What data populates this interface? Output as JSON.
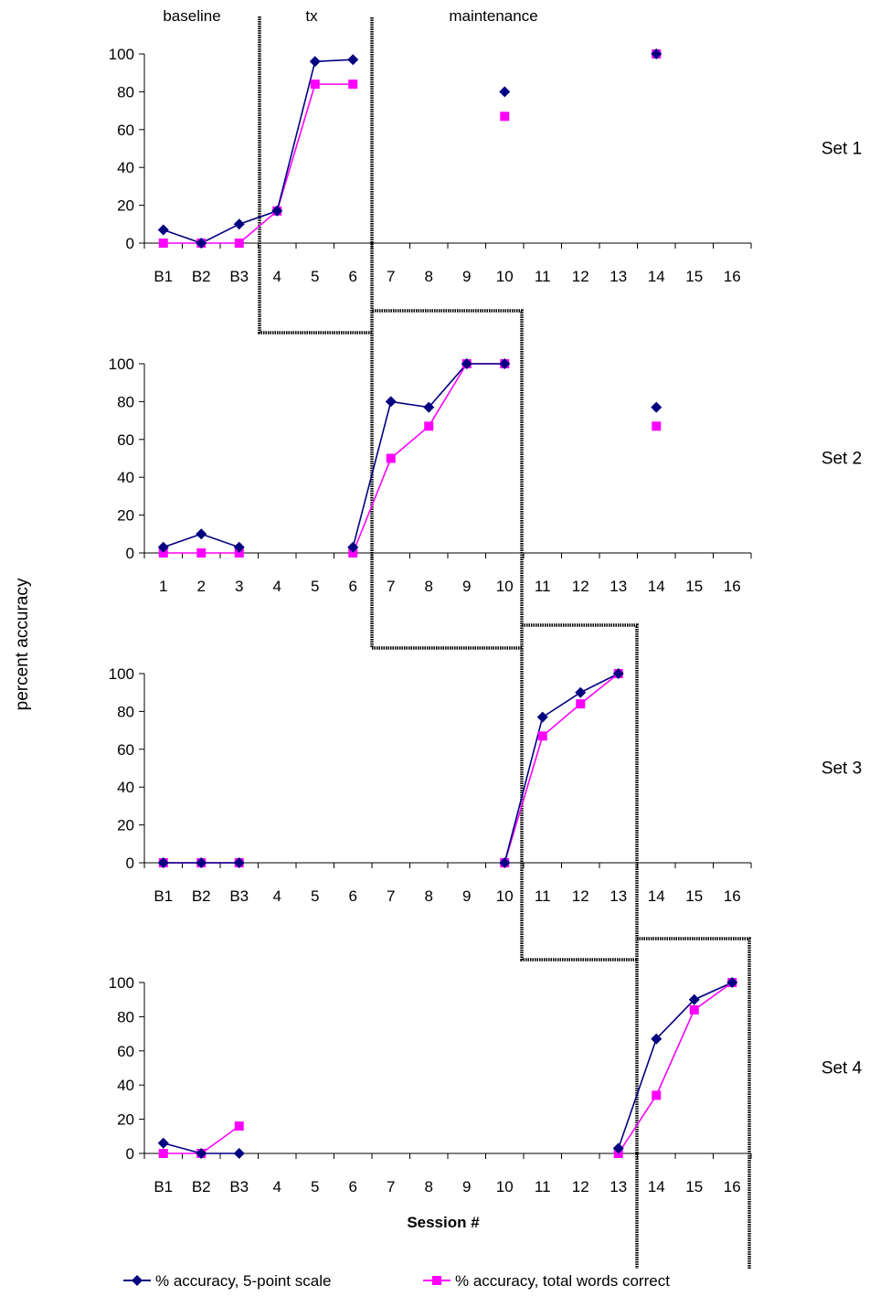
{
  "phase_labels": [
    "baseline",
    "tx",
    "maintenance"
  ],
  "ylabel": "percent accuracy",
  "xlabel": "Session #",
  "legend": [
    {
      "label": "% accuracy, 5-point scale",
      "color": "#000080",
      "marker": "diamond"
    },
    {
      "label": "% accuracy, total words correct",
      "color": "#ff00ff",
      "marker": "square"
    }
  ],
  "chart_data": [
    {
      "type": "line",
      "set_label": "Set 1",
      "categories": [
        "B1",
        "B2",
        "B3",
        "4",
        "5",
        "6",
        "7",
        "8",
        "9",
        "10",
        "11",
        "12",
        "13",
        "14",
        "15",
        "16"
      ],
      "ylim": [
        0,
        100
      ],
      "yticks": [
        0,
        20,
        40,
        60,
        80,
        100
      ],
      "series": [
        {
          "name": "% accuracy, 5-point scale",
          "values": [
            7,
            0,
            10,
            17,
            96,
            97,
            null,
            null,
            null,
            80,
            null,
            null,
            null,
            100,
            null,
            null
          ]
        },
        {
          "name": "% accuracy, total words correct",
          "values": [
            0,
            0,
            0,
            17,
            84,
            84,
            null,
            null,
            null,
            67,
            null,
            null,
            null,
            100,
            null,
            null
          ]
        }
      ]
    },
    {
      "type": "line",
      "set_label": "Set 2",
      "categories": [
        "1",
        "2",
        "3",
        "4",
        "5",
        "6",
        "7",
        "8",
        "9",
        "10",
        "11",
        "12",
        "13",
        "14",
        "15",
        "16"
      ],
      "ylim": [
        0,
        100
      ],
      "yticks": [
        0,
        20,
        40,
        60,
        80,
        100
      ],
      "series": [
        {
          "name": "% accuracy, 5-point scale",
          "values": [
            3,
            10,
            3,
            null,
            null,
            3,
            80,
            77,
            100,
            100,
            null,
            null,
            null,
            77,
            null,
            null
          ]
        },
        {
          "name": "% accuracy, total words correct",
          "values": [
            0,
            0,
            0,
            null,
            null,
            0,
            50,
            67,
            100,
            100,
            null,
            null,
            null,
            67,
            null,
            null
          ]
        }
      ]
    },
    {
      "type": "line",
      "set_label": "Set 3",
      "categories": [
        "B1",
        "B2",
        "B3",
        "4",
        "5",
        "6",
        "7",
        "8",
        "9",
        "10",
        "11",
        "12",
        "13",
        "14",
        "15",
        "16"
      ],
      "ylim": [
        0,
        100
      ],
      "yticks": [
        0,
        20,
        40,
        60,
        80,
        100
      ],
      "series": [
        {
          "name": "% accuracy, 5-point scale",
          "values": [
            0,
            0,
            0,
            null,
            null,
            null,
            null,
            null,
            null,
            0,
            77,
            90,
            100,
            null,
            null,
            null
          ]
        },
        {
          "name": "% accuracy, total words correct",
          "values": [
            0,
            0,
            0,
            null,
            null,
            null,
            null,
            null,
            null,
            0,
            67,
            84,
            100,
            null,
            null,
            null
          ]
        }
      ]
    },
    {
      "type": "line",
      "set_label": "Set 4",
      "categories": [
        "B1",
        "B2",
        "B3",
        "4",
        "5",
        "6",
        "7",
        "8",
        "9",
        "10",
        "11",
        "12",
        "13",
        "14",
        "15",
        "16"
      ],
      "ylim": [
        0,
        100
      ],
      "yticks": [
        0,
        20,
        40,
        60,
        80,
        100
      ],
      "series": [
        {
          "name": "% accuracy, 5-point scale",
          "values": [
            6,
            0,
            0,
            null,
            null,
            null,
            null,
            null,
            null,
            null,
            null,
            null,
            3,
            67,
            90,
            100
          ]
        },
        {
          "name": "% accuracy, total words correct",
          "values": [
            0,
            0,
            16,
            null,
            null,
            null,
            null,
            null,
            null,
            null,
            null,
            null,
            0,
            34,
            84,
            100
          ]
        }
      ]
    }
  ]
}
